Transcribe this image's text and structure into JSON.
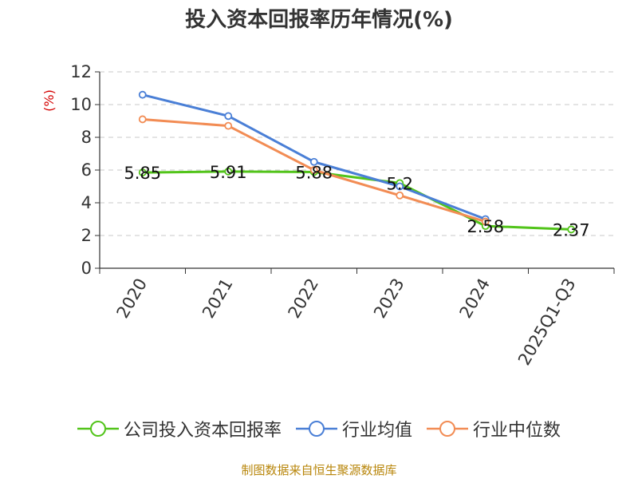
{
  "chart_data": {
    "type": "line",
    "title": "投入资本回报率历年情况(%)",
    "ylabel": "(%)",
    "xlabel": "",
    "categories": [
      "2020",
      "2021",
      "2022",
      "2023",
      "2024",
      "2025Q1-Q3"
    ],
    "ylim": [
      0,
      12
    ],
    "yticks": [
      "0",
      "2",
      "4",
      "6",
      "8",
      "10",
      "12"
    ],
    "grid": true,
    "legend_position": "bottom",
    "series": [
      {
        "name": "公司投入资本回报率",
        "color": "#52c41a",
        "values": [
          5.85,
          5.91,
          5.88,
          5.2,
          2.58,
          2.37
        ],
        "labels": [
          "5.85",
          "5.91",
          "5.88",
          "5.2",
          "2.58",
          "2.37"
        ]
      },
      {
        "name": "行业均值",
        "color": "#4a7fd6",
        "values": [
          10.6,
          9.3,
          6.5,
          5.0,
          3.0,
          null
        ]
      },
      {
        "name": "行业中位数",
        "color": "#f28c54",
        "values": [
          9.1,
          8.7,
          6.0,
          4.45,
          2.85,
          null
        ]
      }
    ]
  },
  "source": "制图数据来自恒生聚源数据库"
}
